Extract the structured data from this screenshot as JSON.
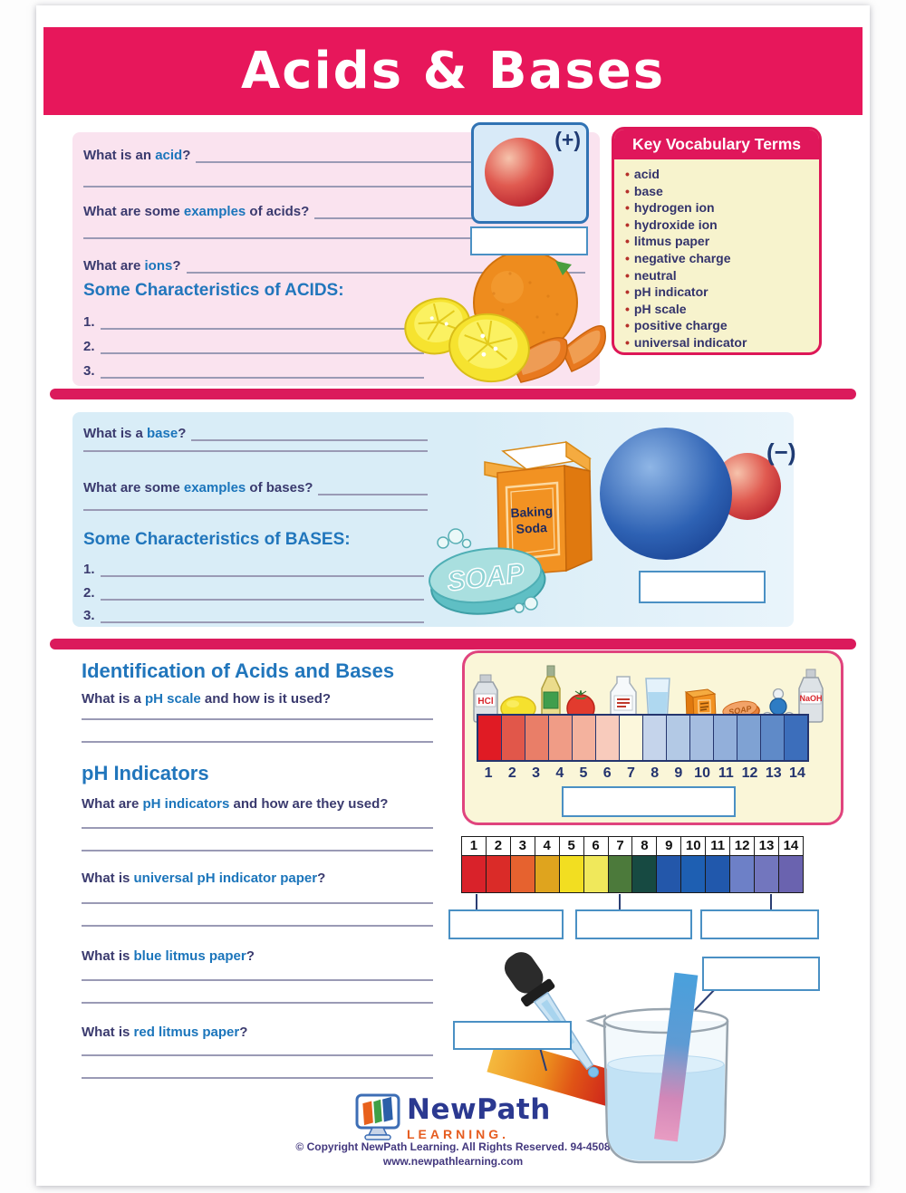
{
  "title": "Acids & Bases",
  "acids": {
    "q1": {
      "pre": "What is an ",
      "key": "acid",
      "post": "?"
    },
    "q2": {
      "pre": "What are some ",
      "key": "examples",
      "post": " of acids?"
    },
    "q3": {
      "pre": "What are ",
      "key": "ions",
      "post": "?"
    },
    "heading": "Some Characteristics of ACIDS:",
    "items": [
      "1.",
      "2.",
      "3."
    ],
    "charge": "(+)"
  },
  "vocabulary": {
    "title": "Key Vocabulary Terms",
    "terms": [
      "acid",
      "base",
      "hydrogen ion",
      "hydroxide ion",
      "litmus paper",
      "negative charge",
      "neutral",
      "pH indicator",
      "pH scale",
      "positive charge",
      "universal indicator"
    ]
  },
  "bases": {
    "q1": {
      "pre": "What is a ",
      "key": "base",
      "post": "?"
    },
    "q2": {
      "pre": "What are some ",
      "key": "examples",
      "post": " of bases?"
    },
    "heading": "Some Characteristics of BASES:",
    "items": [
      "1.",
      "2.",
      "3."
    ],
    "charge": "(−)",
    "baking_line1": "Baking",
    "baking_line2": "Soda",
    "soap_label": "SOAP"
  },
  "identification": {
    "heading": "Identification of Acids and Bases",
    "q_scale": {
      "pre": "What is a ",
      "key": "pH scale",
      "post": " and how is it used?"
    },
    "ph_heading": "pH Indicators",
    "q_indicators": {
      "pre": "What are ",
      "key": "pH indicators",
      "post": " and how are they used?"
    },
    "q_universal": {
      "pre": "What is ",
      "key": "universal pH indicator paper",
      "post": "?"
    },
    "q_blue": {
      "pre": "What is ",
      "key": "blue litmus paper",
      "post": "?"
    },
    "q_red": {
      "pre": "What is ",
      "key": "red litmus paper",
      "post": "?"
    }
  },
  "ph_scale": {
    "numbers": [
      "1",
      "2",
      "3",
      "4",
      "5",
      "6",
      "7",
      "8",
      "9",
      "10",
      "11",
      "12",
      "13",
      "14"
    ],
    "colors": [
      "#E01B24",
      "#E1574A",
      "#E97E68",
      "#F09C86",
      "#F4B29E",
      "#F8CBBC",
      "#FCF7DC",
      "#C5D4EB",
      "#B3C9E5",
      "#A5BDE0",
      "#92AFDA",
      "#7FA2D3",
      "#5F8AC8",
      "#3C6EBB"
    ],
    "products": [
      "hydrochloric acid",
      "lemon",
      "vinegar",
      "tomato",
      "milk",
      "water",
      "baking soda",
      "soap",
      "ammonia",
      "sodium hydroxide"
    ],
    "hcl_label": "HCl",
    "naoh_label": "NaOH"
  },
  "indicator_strip": {
    "numbers": [
      "1",
      "2",
      "3",
      "4",
      "5",
      "6",
      "7",
      "8",
      "9",
      "10",
      "11",
      "12",
      "13",
      "14"
    ],
    "colors": [
      "#D9222A",
      "#DA2B28",
      "#E6622F",
      "#DFA41E",
      "#F2DE21",
      "#F0E85B",
      "#4C7A3B",
      "#174A42",
      "#2357AA",
      "#1E5FB2",
      "#2158AC",
      "#6D80C7",
      "#7276BE",
      "#6A63AF"
    ]
  },
  "footer": {
    "brand_name": "NewPath",
    "brand_sub": "LEARNING.",
    "copyright": "© Copyright NewPath Learning. All Rights Reserved. 94-4508",
    "website": "www.newpathlearning.com"
  },
  "colors": {
    "accent_crimson": "#E7175B",
    "keyword_blue": "#1B75BB",
    "panel_pink": "#FAE3EF",
    "panel_blue": "#D9EDF7",
    "answer_border": "#4A90C4"
  }
}
